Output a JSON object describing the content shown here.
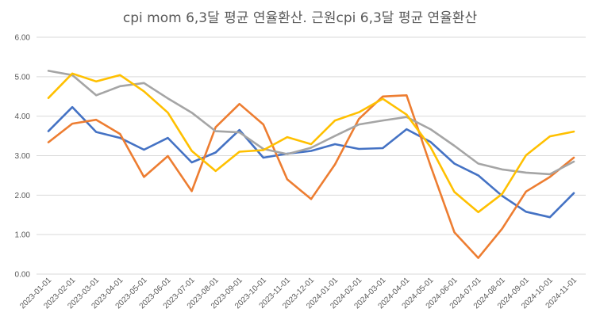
{
  "chart_data": {
    "type": "line",
    "title": "cpi mom 6,3달 평균 연율환산. 근원cpi 6,3달 평균 연율환산",
    "xlabel": "",
    "ylabel": "",
    "ylim": [
      0,
      6
    ],
    "yticks": [
      "0.00",
      "1.00",
      "2.00",
      "3.00",
      "4.00",
      "5.00",
      "6.00"
    ],
    "ytick_values": [
      0,
      1,
      2,
      3,
      4,
      5,
      6
    ],
    "grid": true,
    "legend": "none",
    "categories": [
      "2023-01-01",
      "2023-02-01",
      "2023-03-01",
      "2023-04-01",
      "2023-05-01",
      "2023-06-01",
      "2023-07-01",
      "2023-08-01",
      "2023-09-01",
      "2023-10-01",
      "2023-11-01",
      "2023-12-01",
      "2024-01-01",
      "2024-02-01",
      "2024-03-01",
      "2024-04-01",
      "2024-05-01",
      "2024-06-01",
      "2024-07-01",
      "2024-08-01",
      "2024-09-01",
      "2024-10-01",
      "2024-11-01"
    ],
    "series": [
      {
        "name": "series-blue",
        "color": "#4472C4",
        "values": [
          3.62,
          4.23,
          3.6,
          3.45,
          3.15,
          3.45,
          2.83,
          3.08,
          3.65,
          2.95,
          3.05,
          3.12,
          3.29,
          3.17,
          3.19,
          3.67,
          3.35,
          2.8,
          2.5,
          1.98,
          1.58,
          1.44,
          2.05
        ]
      },
      {
        "name": "series-orange",
        "color": "#ED7D31",
        "values": [
          3.34,
          3.81,
          3.91,
          3.55,
          2.46,
          2.99,
          2.1,
          3.72,
          4.31,
          3.79,
          2.4,
          1.9,
          2.78,
          3.93,
          4.5,
          4.53,
          2.75,
          1.06,
          0.41,
          1.15,
          2.09,
          2.46,
          2.95
        ]
      },
      {
        "name": "series-gray",
        "color": "#A5A5A5",
        "values": [
          5.15,
          5.04,
          4.53,
          4.76,
          4.84,
          4.45,
          4.09,
          3.62,
          3.59,
          3.17,
          3.04,
          3.2,
          3.5,
          3.79,
          3.89,
          3.98,
          3.67,
          3.25,
          2.8,
          2.65,
          2.57,
          2.53,
          2.85
        ]
      },
      {
        "name": "series-yellow",
        "color": "#FFC000",
        "values": [
          4.46,
          5.08,
          4.88,
          5.04,
          4.63,
          4.09,
          3.12,
          2.61,
          3.1,
          3.14,
          3.47,
          3.29,
          3.89,
          4.1,
          4.44,
          4.04,
          3.22,
          2.08,
          1.57,
          2.03,
          3.01,
          3.49,
          3.61
        ]
      }
    ]
  }
}
